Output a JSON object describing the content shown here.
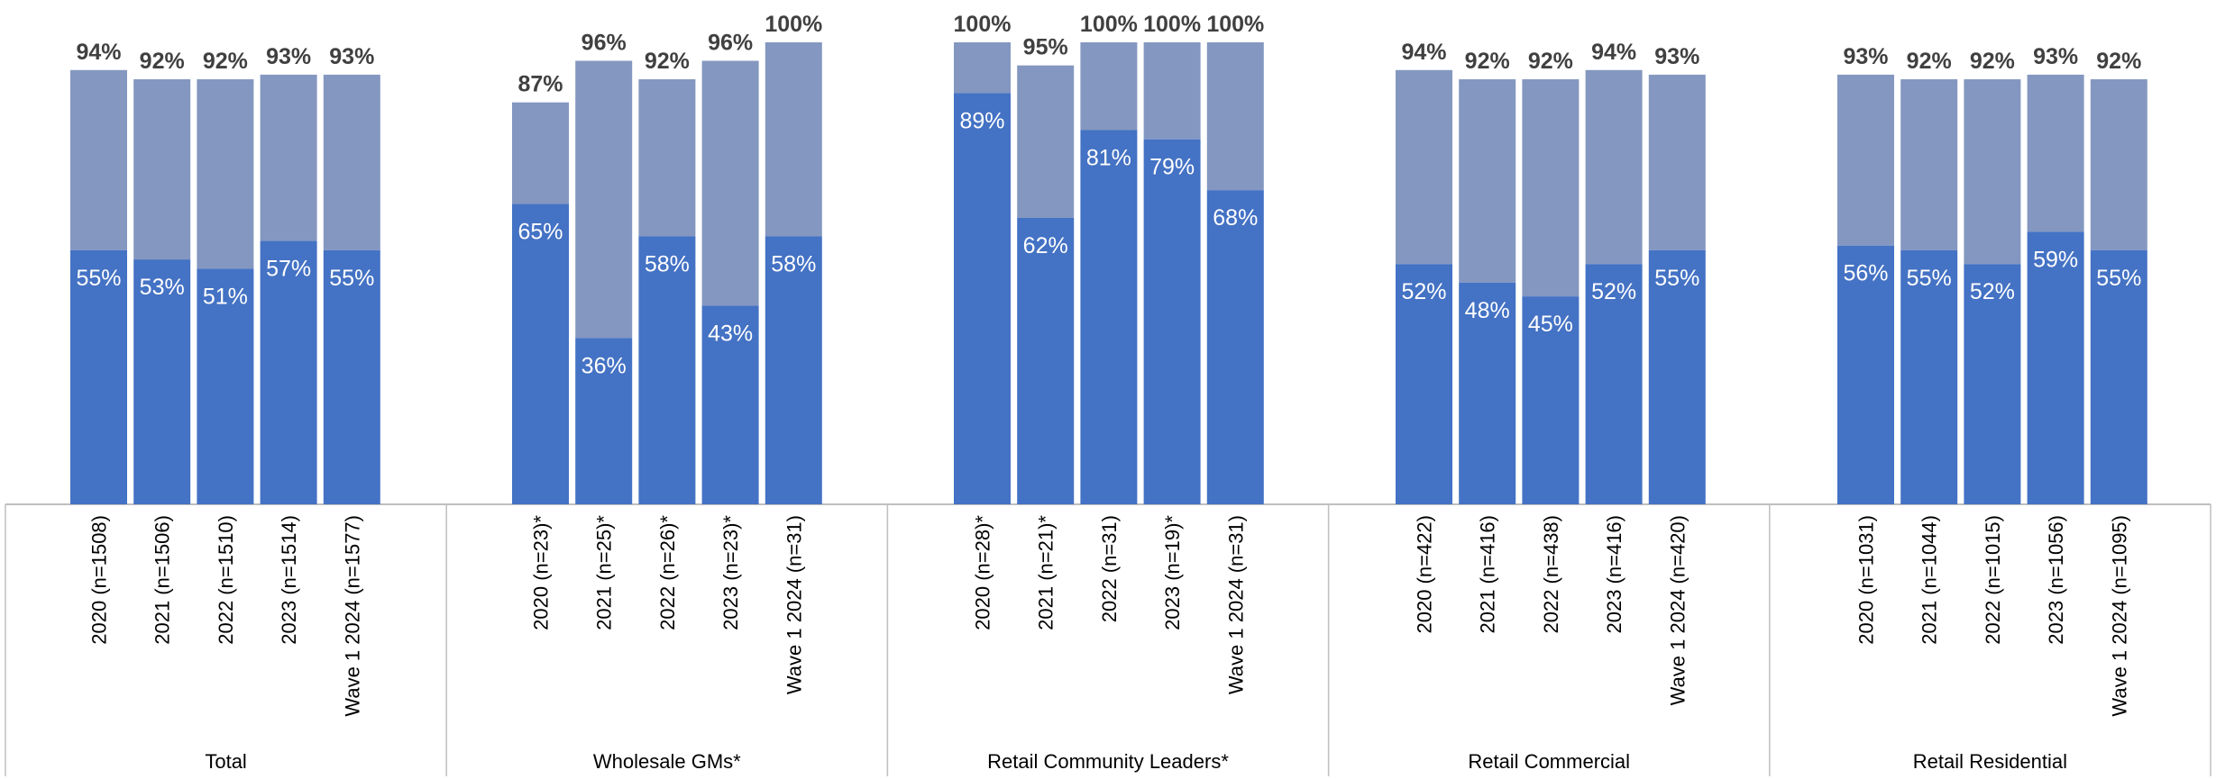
{
  "chart_data": {
    "type": "bar",
    "stacked": true,
    "ylim": [
      0,
      100
    ],
    "grid": false,
    "legend": "none",
    "colors": {
      "inner": "#4472C4",
      "outer": "#8497C0",
      "axis": "#BFBFBF"
    },
    "groups": [
      {
        "name": "Total",
        "categories": [
          "2020 (n=1508)",
          "2021 (n=1506)",
          "2022 (n=1510)",
          "2023 (n=1514)",
          "Wave 1 2024 (n=1577)"
        ],
        "inner": [
          55,
          53,
          51,
          57,
          55
        ],
        "total": [
          94,
          92,
          92,
          93,
          93
        ]
      },
      {
        "name": "Wholesale GMs*",
        "categories": [
          "2020 (n=23)*",
          "2021 (n=25)*",
          "2022 (n=26)*",
          "2023 (n=23)*",
          "Wave 1 2024 (n=31)"
        ],
        "inner": [
          65,
          36,
          58,
          43,
          58
        ],
        "total": [
          87,
          96,
          92,
          96,
          100
        ]
      },
      {
        "name": "Retail Community Leaders*",
        "categories": [
          "2020 (n=28)*",
          "2021 (n=21)*",
          "2022 (n=31)",
          "2023 (n=19)*",
          "Wave 1 2024 (n=31)"
        ],
        "inner": [
          89,
          62,
          81,
          79,
          68
        ],
        "total": [
          100,
          95,
          100,
          100,
          100
        ]
      },
      {
        "name": "Retail Commercial",
        "categories": [
          "2020 (n=422)",
          "2021 (n=416)",
          "2022 (n=438)",
          "2023 (n=416)",
          "Wave 1 2024 (n=420)"
        ],
        "inner": [
          52,
          48,
          45,
          52,
          55
        ],
        "total": [
          94,
          92,
          92,
          94,
          93
        ]
      },
      {
        "name": "Retail Residential",
        "categories": [
          "2020 (n=1031)",
          "2021 (n=1044)",
          "2022 (n=1015)",
          "2023 (n=1056)",
          "Wave 1 2024 (n=1095)"
        ],
        "inner": [
          56,
          55,
          52,
          59,
          55
        ],
        "total": [
          93,
          92,
          92,
          93,
          92
        ]
      }
    ]
  }
}
